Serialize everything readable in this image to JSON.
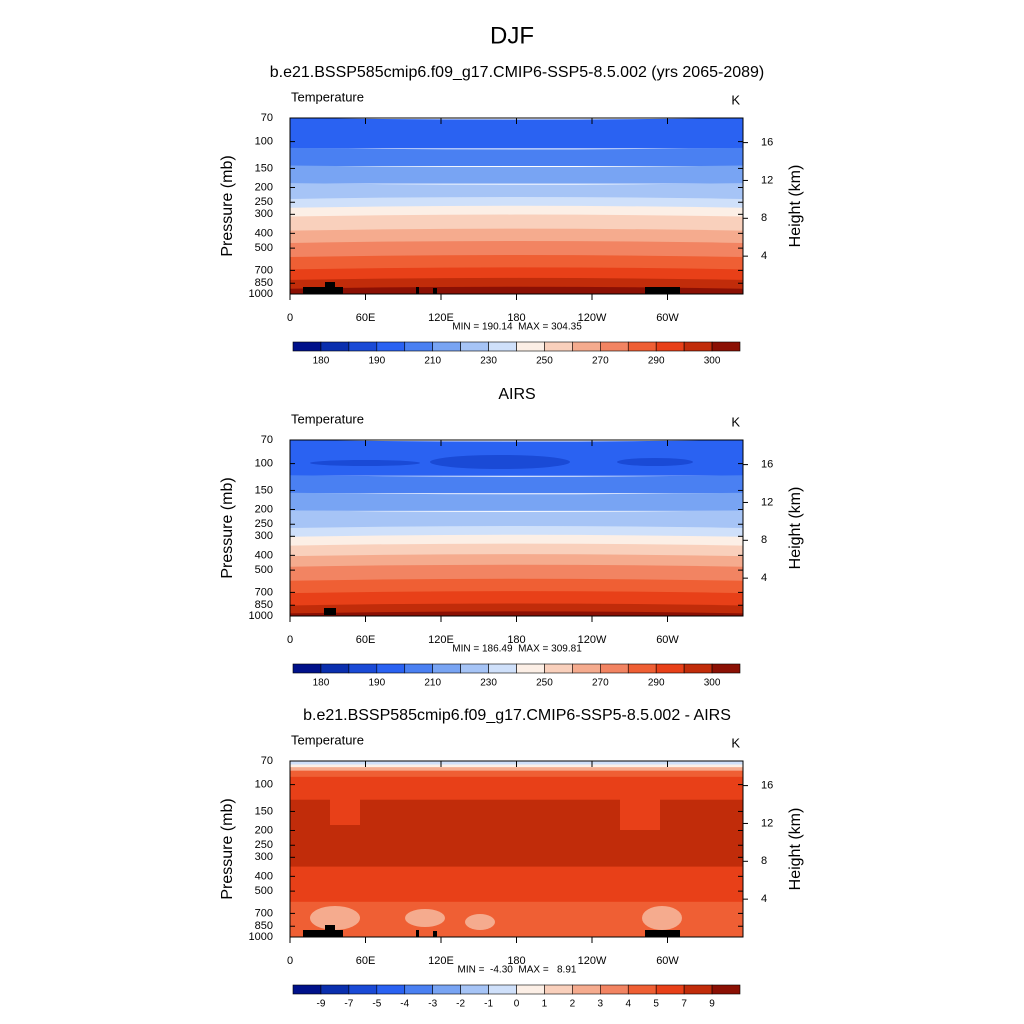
{
  "title": "DJF",
  "chart_data": [
    {
      "type": "contour",
      "title": "b.e21.BSSP585cmip6.f09_g17.CMIP6-SSP5-8.5.002 (yrs 2065-2089)",
      "label_left": "Temperature",
      "units": "K",
      "ylabel": "Pressure (mb)",
      "y2label": "Height (km)",
      "log_y": true,
      "ylim": [
        1000,
        70
      ],
      "yticks": [
        70,
        100,
        150,
        200,
        250,
        300,
        400,
        500,
        700,
        850,
        1000
      ],
      "y2lim": [
        0,
        18.6
      ],
      "y2ticks": [
        4,
        8,
        12,
        16
      ],
      "xlim": [
        0,
        360
      ],
      "xticks": [
        0,
        {
          "value": 60,
          "label": "60E"
        },
        {
          "value": 120,
          "label": "120E"
        },
        180,
        {
          "value": 240,
          "label": "120W"
        },
        {
          "value": 300,
          "label": "60W"
        }
      ],
      "stats": "MIN = 190.14  MAX = 304.35",
      "colorbar": {
        "colors": [
          "#00118a",
          "#0a2fae",
          "#1a4ad6",
          "#2a62f2",
          "#4a80f2",
          "#78a4f3",
          "#a6c4f6",
          "#cfe0fa",
          "#fcefe6",
          "#f9d0bc",
          "#f5ab8e",
          "#f28462",
          "#ef5f34",
          "#e84018",
          "#c12c0a",
          "#8b1004"
        ],
        "ticks": [
          180,
          190,
          210,
          230,
          250,
          270,
          290,
          300
        ]
      }
    },
    {
      "type": "contour",
      "title": "AIRS",
      "label_left": "Temperature",
      "units": "K",
      "ylabel": "Pressure (mb)",
      "y2label": "Height (km)",
      "log_y": true,
      "ylim": [
        1000,
        70
      ],
      "yticks": [
        70,
        100,
        150,
        200,
        250,
        300,
        400,
        500,
        700,
        850,
        1000
      ],
      "y2lim": [
        0,
        18.6
      ],
      "y2ticks": [
        4,
        8,
        12,
        16
      ],
      "xlim": [
        0,
        360
      ],
      "xticks": [
        0,
        {
          "value": 60,
          "label": "60E"
        },
        {
          "value": 120,
          "label": "120E"
        },
        180,
        {
          "value": 240,
          "label": "120W"
        },
        {
          "value": 300,
          "label": "60W"
        }
      ],
      "stats": "MIN = 186.49  MAX = 309.81",
      "colorbar": {
        "colors": [
          "#00118a",
          "#0a2fae",
          "#1a4ad6",
          "#2a62f2",
          "#4a80f2",
          "#78a4f3",
          "#a6c4f6",
          "#cfe0fa",
          "#fcefe6",
          "#f9d0bc",
          "#f5ab8e",
          "#f28462",
          "#ef5f34",
          "#e84018",
          "#c12c0a",
          "#8b1004"
        ],
        "ticks": [
          180,
          190,
          210,
          230,
          250,
          270,
          290,
          300
        ]
      }
    },
    {
      "type": "contour",
      "title": "b.e21.BSSP585cmip6.f09_g17.CMIP6-SSP5-8.5.002 - AIRS",
      "label_left": "Temperature",
      "units": "K",
      "ylabel": "Pressure (mb)",
      "y2label": "Height (km)",
      "log_y": true,
      "ylim": [
        1000,
        70
      ],
      "yticks": [
        70,
        100,
        150,
        200,
        250,
        300,
        400,
        500,
        700,
        850,
        1000
      ],
      "y2lim": [
        0,
        18.6
      ],
      "y2ticks": [
        4,
        8,
        12,
        16
      ],
      "xlim": [
        0,
        360
      ],
      "xticks": [
        0,
        {
          "value": 60,
          "label": "60E"
        },
        {
          "value": 120,
          "label": "120E"
        },
        180,
        {
          "value": 240,
          "label": "120W"
        },
        {
          "value": 300,
          "label": "60W"
        }
      ],
      "stats": "MIN =  -4.30  MAX =   8.91",
      "colorbar": {
        "colors": [
          "#00118a",
          "#0a2fae",
          "#1a4ad6",
          "#2a62f2",
          "#4a80f2",
          "#78a4f3",
          "#a6c4f6",
          "#cfe0fa",
          "#fcefe6",
          "#f9d0bc",
          "#f5ab8e",
          "#f28462",
          "#ef5f34",
          "#e84018",
          "#c12c0a",
          "#8b1004"
        ],
        "ticks": [
          -9,
          -7,
          -5,
          -4,
          -3,
          -2,
          -1,
          0,
          1,
          2,
          3,
          4,
          5,
          7,
          9
        ]
      }
    }
  ]
}
